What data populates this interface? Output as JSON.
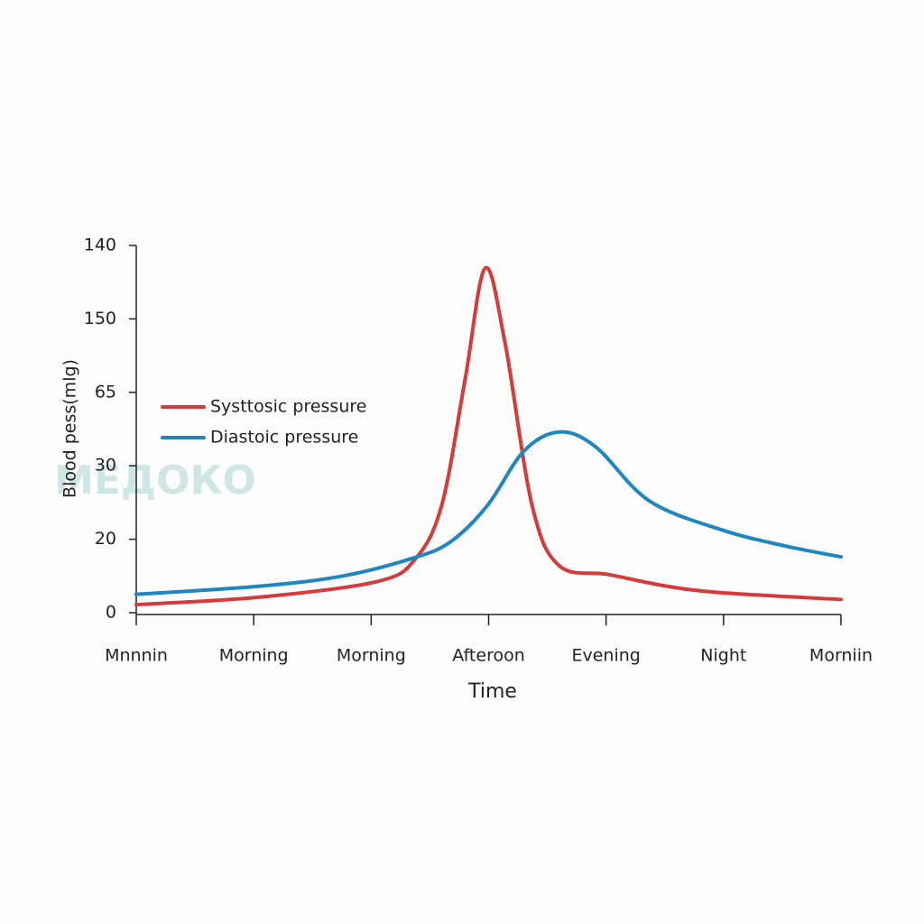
{
  "chart_data": {
    "type": "line",
    "xlabel": "Time",
    "ylabel": "Blood pess(mlg)",
    "watermark": "МЕДОКО",
    "xlim": [
      0,
      6
    ],
    "xticks": [
      {
        "value": 0,
        "label": "Mnnnin"
      },
      {
        "value": 1,
        "label": "Morning"
      },
      {
        "value": 2,
        "label": "Morning"
      },
      {
        "value": 3,
        "label": "Afteroon"
      },
      {
        "value": 4,
        "label": "Evening"
      },
      {
        "value": 5,
        "label": "Night"
      },
      {
        "value": 6,
        "label": "Morniin"
      }
    ],
    "ylim": [
      0,
      5
    ],
    "yticks": [
      0,
      {
        "value": 1,
        "label": "20"
      },
      {
        "value": 2,
        "label": "30"
      },
      {
        "value": 3,
        "label": "65"
      },
      {
        "value": 4,
        "label": "150"
      },
      {
        "value": 5,
        "label": "140"
      }
    ],
    "series": [
      {
        "name": "Systtosic pressure",
        "color": "#d63a3a",
        "x": [
          0,
          1.04,
          2.04,
          2.37,
          2.6,
          2.8,
          2.97,
          3.14,
          3.37,
          3.6,
          4.02,
          4.52,
          5.0,
          6.0
        ],
        "values": [
          0.11,
          0.21,
          0.42,
          0.72,
          1.46,
          3.18,
          4.69,
          3.67,
          1.46,
          0.64,
          0.52,
          0.36,
          0.27,
          0.18
        ]
      },
      {
        "name": "Diastoic pressure",
        "color": "#1f86c0",
        "x": [
          0,
          1.04,
          1.76,
          2.37,
          2.68,
          2.99,
          3.3,
          3.6,
          3.91,
          4.37,
          5.0,
          5.52,
          6.0
        ],
        "values": [
          0.25,
          0.36,
          0.5,
          0.75,
          0.97,
          1.46,
          2.2,
          2.46,
          2.26,
          1.52,
          1.12,
          0.91,
          0.76
        ]
      }
    ],
    "legend": "upper left"
  }
}
